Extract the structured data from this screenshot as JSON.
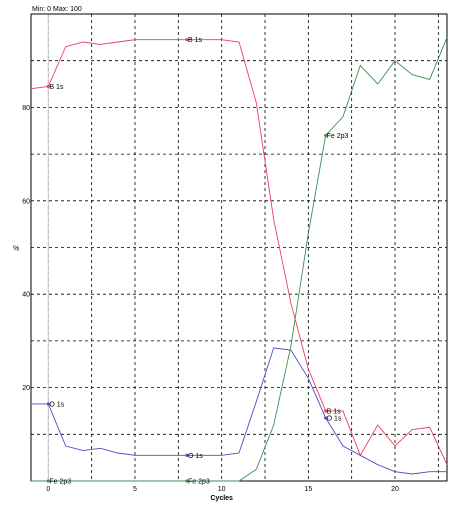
{
  "chart_data": {
    "type": "line",
    "minmax_label": "Min: 0    Max: 100",
    "xlabel": "Cycles",
    "ylabel": "%",
    "xlim": [
      -1,
      23
    ],
    "ylim": [
      0,
      100
    ],
    "x_ticks": [
      0,
      5,
      10,
      15,
      20
    ],
    "y_ticks": [
      20,
      40,
      60,
      80
    ],
    "grid": true,
    "x": [
      -1,
      0,
      1,
      2,
      3,
      4,
      5,
      6,
      7,
      8,
      9,
      10,
      11,
      12,
      13,
      14,
      15,
      16,
      17,
      18,
      19,
      20,
      21,
      22,
      23
    ],
    "series": [
      {
        "name": "B 1s",
        "color": "#e8405a",
        "values": [
          84,
          84.5,
          93,
          94,
          93.5,
          94,
          94.5,
          94.5,
          94.5,
          94.5,
          94.5,
          94.5,
          94,
          81,
          56,
          38,
          24,
          15,
          15,
          5.5,
          12,
          7.5,
          11,
          11.5,
          3.5
        ]
      },
      {
        "name": "O 1s",
        "color": "#4a4ec8",
        "values": [
          16.5,
          16.5,
          7.5,
          6.5,
          7,
          6,
          5.5,
          5.5,
          5.5,
          5.5,
          5.5,
          5.5,
          6,
          17,
          28.5,
          28,
          22,
          13.5,
          7.5,
          5.5,
          3.5,
          2,
          1.5,
          2,
          2
        ]
      },
      {
        "name": "Fe 2p3",
        "color": "#3e8e54",
        "values": [
          0,
          0,
          0,
          0,
          0,
          0,
          0,
          0,
          0,
          0,
          0,
          0,
          0,
          2.5,
          12,
          29,
          53,
          74,
          78,
          89,
          85,
          90,
          87,
          86,
          95
        ]
      }
    ],
    "annotations": [
      {
        "text": "B 1s",
        "x": 0,
        "y": 84.5,
        "series": 0
      },
      {
        "text": "B 1s",
        "x": 8,
        "y": 94.5,
        "series": 0
      },
      {
        "text": "B 1s",
        "x": 16,
        "y": 15,
        "series": 0
      },
      {
        "text": "O 1s",
        "x": 0,
        "y": 16.5,
        "series": 1
      },
      {
        "text": "O 1s",
        "x": 8,
        "y": 5.5,
        "series": 1
      },
      {
        "text": "O 1s",
        "x": 16,
        "y": 13.5,
        "series": 1
      },
      {
        "text": "Fe 2p3",
        "x": 0,
        "y": 0,
        "series": 2
      },
      {
        "text": "Fe 2p3",
        "x": 8,
        "y": 0,
        "series": 2
      },
      {
        "text": "Fe 2p3",
        "x": 16,
        "y": 74,
        "series": 2
      }
    ]
  }
}
